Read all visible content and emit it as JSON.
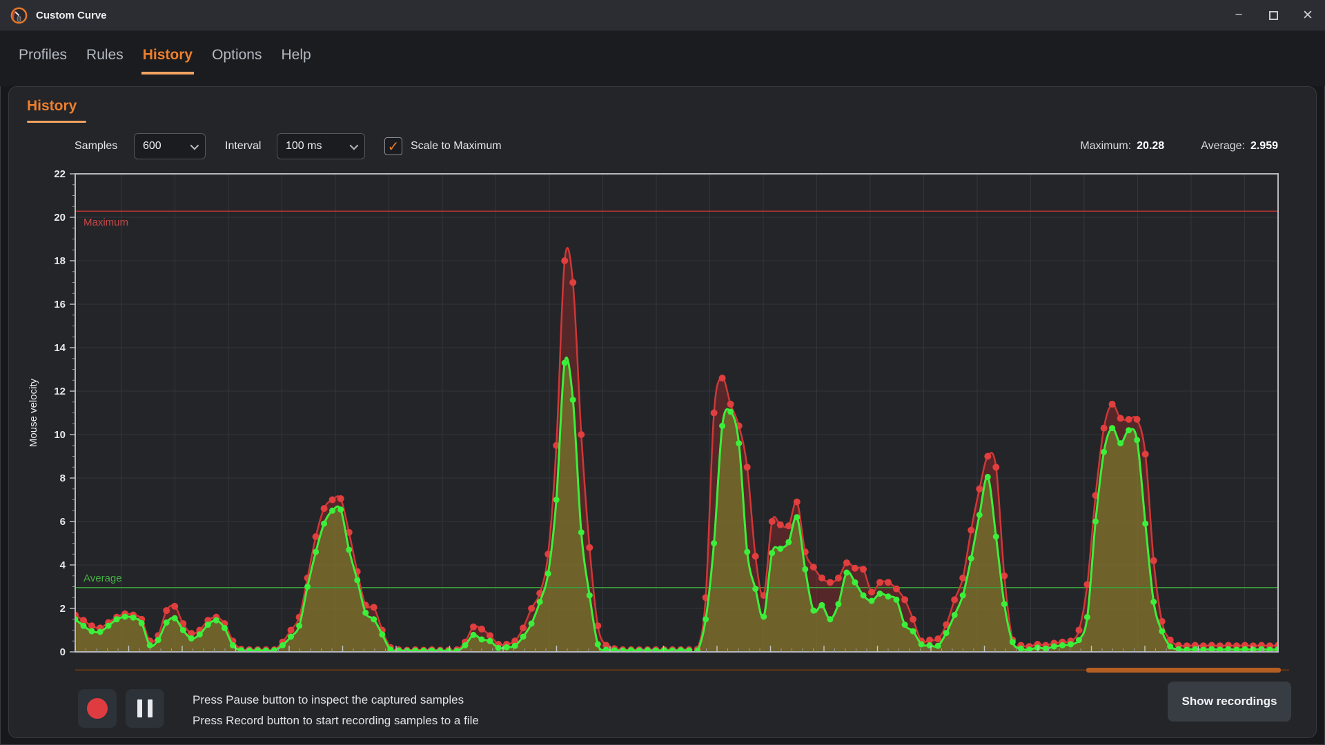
{
  "window": {
    "title": "Custom Curve"
  },
  "titlebar": {
    "minimize_glyph": "−",
    "close_glyph": "✕"
  },
  "tabs": {
    "items": [
      {
        "label": "Profiles",
        "active": false
      },
      {
        "label": "Rules",
        "active": false
      },
      {
        "label": "History",
        "active": true
      },
      {
        "label": "Options",
        "active": false
      },
      {
        "label": "Help",
        "active": false
      }
    ]
  },
  "history": {
    "section_title": "History"
  },
  "controls": {
    "samples_label": "Samples",
    "samples_value": "600",
    "interval_label": "Interval",
    "interval_value": "100 ms",
    "scale_label": "Scale to Maximum",
    "scale_checked": true,
    "check_glyph": "✓"
  },
  "stats": {
    "maximum_label": "Maximum:",
    "maximum_value": "20.28",
    "average_label": "Average:",
    "average_value": "2.959"
  },
  "colors": {
    "accent": "#ee7f2d",
    "scrollbar_thumb": "#b45e23",
    "raw_series": "#cf3737",
    "smoothed_series": "#3bef3b"
  },
  "chart_data": {
    "type": "line",
    "title": "",
    "xlabel": "",
    "ylabel": "Mouse velocity",
    "ylim": [
      0,
      22
    ],
    "yticks": [
      0,
      2,
      4,
      6,
      8,
      10,
      12,
      14,
      16,
      18,
      20,
      22
    ],
    "grid": true,
    "legend_position": "none",
    "x_axis": {
      "samples": 600,
      "interval_ms": 100,
      "tick_labels": "none"
    },
    "reference_lines": [
      {
        "label": "Maximum",
        "value": 20.28,
        "color": "#a83434",
        "label_color": "#c34848",
        "label_side": "below"
      },
      {
        "label": "Average",
        "value": 2.959,
        "color": "#3a9e3a",
        "label_color": "#46b146",
        "label_side": "above"
      }
    ],
    "series": [
      {
        "name": "velocity-raw",
        "color": "#cf3737",
        "dot_color": "#e13e3e",
        "dot_r": 5,
        "line_width": 2.5,
        "fill": "rgba(158,44,42,0.42)",
        "values": [
          1.7,
          1.45,
          1.2,
          1.1,
          1.35,
          1.6,
          1.75,
          1.7,
          1.5,
          0.5,
          0.75,
          1.9,
          2.1,
          1.3,
          0.85,
          1.0,
          1.45,
          1.6,
          1.3,
          0.5,
          0.12,
          0.1,
          0.1,
          0.1,
          0.1,
          0.45,
          1.0,
          1.6,
          3.4,
          5.3,
          6.6,
          7.0,
          7.05,
          5.5,
          3.7,
          2.15,
          2.05,
          1.0,
          0.2,
          0.1,
          0.08,
          0.1,
          0.08,
          0.1,
          0.08,
          0.08,
          0.1,
          0.45,
          1.15,
          1.05,
          0.75,
          0.35,
          0.35,
          0.5,
          1.1,
          2.0,
          2.7,
          4.5,
          9.5,
          18.0,
          17.0,
          10.0,
          4.8,
          1.2,
          0.3,
          0.15,
          0.1,
          0.1,
          0.1,
          0.1,
          0.1,
          0.1,
          0.1,
          0.1,
          0.1,
          0.12,
          2.5,
          11.0,
          12.6,
          11.4,
          10.4,
          8.5,
          4.4,
          2.6,
          6.0,
          5.85,
          5.8,
          6.9,
          4.6,
          3.9,
          3.4,
          3.2,
          3.4,
          4.1,
          3.85,
          3.8,
          2.75,
          3.2,
          3.2,
          2.9,
          2.4,
          1.5,
          0.5,
          0.55,
          0.6,
          1.25,
          2.4,
          3.4,
          5.6,
          7.5,
          9.0,
          8.5,
          3.5,
          0.55,
          0.3,
          0.25,
          0.35,
          0.3,
          0.4,
          0.45,
          0.5,
          1.0,
          3.1,
          7.2,
          10.3,
          11.4,
          10.75,
          10.7,
          10.7,
          9.1,
          4.2,
          1.4,
          0.55,
          0.3,
          0.28,
          0.3,
          0.28,
          0.3,
          0.28,
          0.3,
          0.28,
          0.3,
          0.28,
          0.3,
          0.28,
          0.3
        ]
      },
      {
        "name": "velocity-smoothed",
        "color": "#3bef3b",
        "dot_color": "#3bef3b",
        "dot_r": 4.5,
        "line_width": 3,
        "fill": "rgba(132,146,42,0.55)",
        "values": [
          1.5,
          1.2,
          0.95,
          0.92,
          1.2,
          1.5,
          1.62,
          1.58,
          1.32,
          0.3,
          0.55,
          1.35,
          1.55,
          1.0,
          0.62,
          0.8,
          1.25,
          1.45,
          1.1,
          0.3,
          0.07,
          0.06,
          0.07,
          0.06,
          0.07,
          0.3,
          0.7,
          1.2,
          3.0,
          4.6,
          5.9,
          6.5,
          6.55,
          4.7,
          3.3,
          1.8,
          1.5,
          0.8,
          0.1,
          0.06,
          0.05,
          0.06,
          0.05,
          0.06,
          0.05,
          0.04,
          0.04,
          0.3,
          0.78,
          0.57,
          0.5,
          0.18,
          0.21,
          0.28,
          0.7,
          1.3,
          2.3,
          3.6,
          7.0,
          13.3,
          11.6,
          5.5,
          2.6,
          0.35,
          0.1,
          0.07,
          0.06,
          0.07,
          0.06,
          0.07,
          0.06,
          0.07,
          0.06,
          0.07,
          0.06,
          0.05,
          1.5,
          5.0,
          10.4,
          11.05,
          9.6,
          4.6,
          2.9,
          1.62,
          4.55,
          4.75,
          5.05,
          6.2,
          3.8,
          1.9,
          2.15,
          1.5,
          2.2,
          3.65,
          3.2,
          2.6,
          2.35,
          2.68,
          2.55,
          2.4,
          1.25,
          0.95,
          0.35,
          0.3,
          0.28,
          0.87,
          1.7,
          2.6,
          4.3,
          6.3,
          8.05,
          5.3,
          2.2,
          0.45,
          0.15,
          0.1,
          0.2,
          0.15,
          0.25,
          0.3,
          0.35,
          0.55,
          1.6,
          6.0,
          9.2,
          10.3,
          9.6,
          10.2,
          9.75,
          5.9,
          2.3,
          0.95,
          0.25,
          0.12,
          0.1,
          0.12,
          0.1,
          0.12,
          0.1,
          0.12,
          0.1,
          0.12,
          0.1,
          0.12,
          0.1,
          0.12
        ]
      }
    ]
  },
  "footer": {
    "line1": "Press Pause button to inspect the captured samples",
    "line2": "Press Record button to start recording samples to a file",
    "show_recordings_label": "Show recordings"
  }
}
